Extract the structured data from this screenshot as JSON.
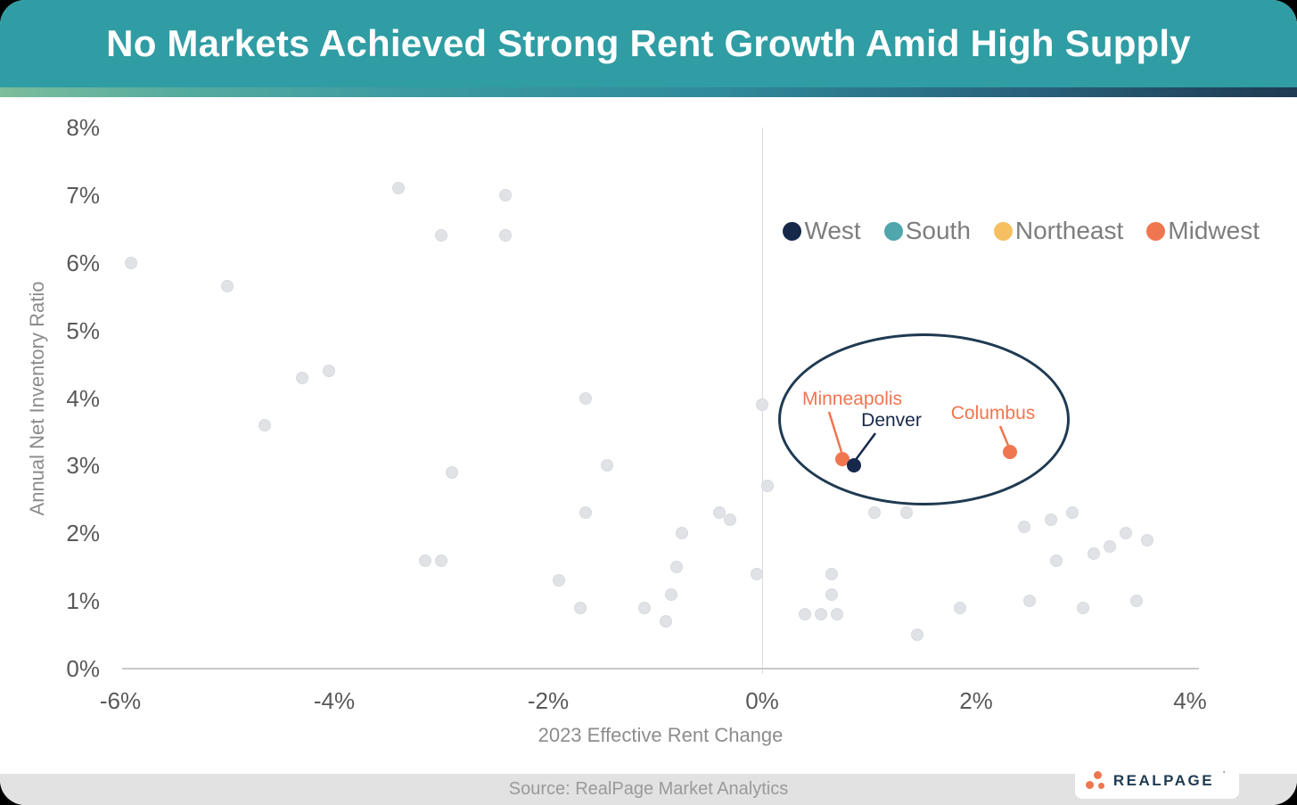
{
  "header": {
    "title": "No Markets Achieved Strong Rent Growth Amid High Supply"
  },
  "footer": {
    "source": "Source: RealPage Market Analytics",
    "logo_text": "REALPAGE",
    "logo_tm": "'"
  },
  "colors": {
    "header_bg": "#2f9da3",
    "accent_navy": "#16294b",
    "accent_teal": "#4fa6ac",
    "accent_amber": "#f6c061",
    "accent_orange": "#f0764f",
    "unhighlighted_point": "#e0e2e6",
    "annotation_ellipse": "#1f3a52"
  },
  "chart_data": {
    "type": "scatter",
    "title": "No Markets Achieved Strong Rent Growth Amid High Supply",
    "xlabel": "2023 Effective Rent Change",
    "ylabel": "Annual Net Inventory Ratio",
    "xlim": [
      -6,
      4
    ],
    "ylim": [
      0,
      8
    ],
    "grid": "single vertical reference line at x = 0%",
    "legend_position": "upper right inside plot",
    "x_ticks": [
      {
        "value": -6,
        "label": "-6%"
      },
      {
        "value": -4,
        "label": "-4%"
      },
      {
        "value": -2,
        "label": "-2%"
      },
      {
        "value": 0,
        "label": "0%"
      },
      {
        "value": 2,
        "label": "2%"
      },
      {
        "value": 4,
        "label": "4%"
      }
    ],
    "y_ticks": [
      {
        "value": 0,
        "label": "0%"
      },
      {
        "value": 1,
        "label": "1%"
      },
      {
        "value": 2,
        "label": "2%"
      },
      {
        "value": 3,
        "label": "3%"
      },
      {
        "value": 4,
        "label": "4%"
      },
      {
        "value": 5,
        "label": "5%"
      },
      {
        "value": 6,
        "label": "6%"
      },
      {
        "value": 7,
        "label": "7%"
      },
      {
        "value": 8,
        "label": "8%"
      }
    ],
    "legend": [
      {
        "label": "West",
        "color": "#16294b"
      },
      {
        "label": "South",
        "color": "#4fa6ac"
      },
      {
        "label": "Northeast",
        "color": "#f6c061"
      },
      {
        "label": "Midwest",
        "color": "#f0764f"
      }
    ],
    "highlighted_points": [
      {
        "city": "Minneapolis",
        "region": "Midwest",
        "x": 0.75,
        "y": 3.1
      },
      {
        "city": "Denver",
        "region": "West",
        "x": 0.86,
        "y": 3.0
      },
      {
        "city": "Columbus",
        "region": "Midwest",
        "x": 2.32,
        "y": 3.2
      }
    ],
    "annotation": {
      "ellipse_around": [
        "Minneapolis",
        "Denver",
        "Columbus"
      ]
    },
    "unhighlighted_points": [
      [
        -5.9,
        6.0
      ],
      [
        -5.0,
        5.65
      ],
      [
        -4.65,
        3.6
      ],
      [
        -4.3,
        4.3
      ],
      [
        -4.05,
        4.4
      ],
      [
        -3.4,
        7.1
      ],
      [
        -3.15,
        1.6
      ],
      [
        -3.0,
        1.6
      ],
      [
        -3.0,
        6.4
      ],
      [
        -2.9,
        2.9
      ],
      [
        -2.4,
        7.0
      ],
      [
        -2.4,
        6.4
      ],
      [
        -1.9,
        1.3
      ],
      [
        -1.7,
        0.9
      ],
      [
        -1.65,
        4.0
      ],
      [
        -1.65,
        2.3
      ],
      [
        -1.45,
        3.0
      ],
      [
        -1.1,
        0.9
      ],
      [
        -0.9,
        0.7
      ],
      [
        -0.85,
        1.1
      ],
      [
        -0.8,
        1.5
      ],
      [
        -0.75,
        2.0
      ],
      [
        -0.4,
        2.3
      ],
      [
        -0.3,
        2.2
      ],
      [
        -0.05,
        1.4
      ],
      [
        0.0,
        3.9
      ],
      [
        0.05,
        2.7
      ],
      [
        0.4,
        0.8
      ],
      [
        0.55,
        0.8
      ],
      [
        0.65,
        1.1
      ],
      [
        0.65,
        1.4
      ],
      [
        0.7,
        0.8
      ],
      [
        1.05,
        2.3
      ],
      [
        1.35,
        2.3
      ],
      [
        1.45,
        0.5
      ],
      [
        1.85,
        0.9
      ],
      [
        2.45,
        2.1
      ],
      [
        2.5,
        1.0
      ],
      [
        2.7,
        2.2
      ],
      [
        2.75,
        1.6
      ],
      [
        2.9,
        2.3
      ],
      [
        3.0,
        0.9
      ],
      [
        3.1,
        1.7
      ],
      [
        3.25,
        1.8
      ],
      [
        3.4,
        2.0
      ],
      [
        3.5,
        1.0
      ],
      [
        3.6,
        1.9
      ]
    ]
  }
}
